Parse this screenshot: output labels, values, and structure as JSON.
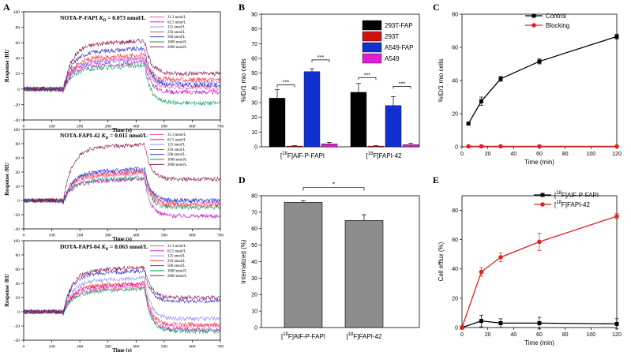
{
  "figure": {
    "panel_letters": [
      "A",
      "B",
      "C",
      "D",
      "E"
    ]
  },
  "chart_data": [
    {
      "id": "A1",
      "type": "line",
      "title_prefix": "NOTA-P-FAPI",
      "kd_symbol": "K",
      "kd_sub": "D",
      "kd_value": " = 0.073 nmol/L",
      "xlabel": "Time (s)",
      "ylabel": "Response /RU",
      "xlim": [
        0,
        700
      ],
      "ylim": [
        -40,
        100
      ],
      "xticks": [
        "0",
        "100",
        "200",
        "300",
        "400",
        "500",
        "600",
        "700"
      ],
      "yticks": [
        "-40",
        "-20",
        "0",
        "20",
        "40",
        "60",
        "80",
        "100"
      ],
      "injection_start_s": 140,
      "injection_end_s": 430,
      "series": [
        {
          "name": "31.3 nmol/L",
          "color": "#ff4fa0",
          "plateau": 38,
          "end": 2
        },
        {
          "name": "62.5 nmol/L",
          "color": "#c000c0",
          "plateau": 32,
          "end": -4
        },
        {
          "name": "125 nmol/L",
          "color": "#8080ff",
          "plateau": 36,
          "end": 8
        },
        {
          "name": "250 nmol/L",
          "color": "#ff2020",
          "plateau": 42,
          "end": 12
        },
        {
          "name": "500 nmol/L",
          "color": "#2020c0",
          "plateau": 50,
          "end": 5
        },
        {
          "name": "1000 nmol/L",
          "color": "#00a050",
          "plateau": 28,
          "end": -18
        },
        {
          "name": "2000 nmol/L",
          "color": "#800040",
          "plateau": 60,
          "end": 20
        }
      ]
    },
    {
      "id": "A2",
      "type": "line",
      "title_prefix": "NOTA-FAPI-42",
      "kd_symbol": "K",
      "kd_sub": "D",
      "kd_value": " = 0.011 nmol/L",
      "xlabel": "Time (s)",
      "ylabel": "Response /RU",
      "xlim": [
        0,
        700
      ],
      "ylim": [
        -40,
        100
      ],
      "xticks": [
        "0",
        "100",
        "200",
        "300",
        "400",
        "500",
        "600",
        "700"
      ],
      "yticks": [
        "-40",
        "-20",
        "0",
        "20",
        "40",
        "60",
        "80",
        "100"
      ],
      "injection_start_s": 140,
      "injection_end_s": 430,
      "series": [
        {
          "name": "31.3 nmol/L",
          "color": "#ff4fa0",
          "plateau": 35,
          "end": -8
        },
        {
          "name": "62.5 nmol/L",
          "color": "#c000c0",
          "plateau": 28,
          "end": -22
        },
        {
          "name": "125 nmol/L",
          "color": "#8080ff",
          "plateau": 40,
          "end": -2
        },
        {
          "name": "250 nmol/L",
          "color": "#ff2020",
          "plateau": 38,
          "end": -5
        },
        {
          "name": "500 nmol/L",
          "color": "#2020c0",
          "plateau": 42,
          "end": 0
        },
        {
          "name": "1000 nmol/L",
          "color": "#00a050",
          "plateau": 30,
          "end": -10
        },
        {
          "name": "2000 nmol/L",
          "color": "#800040",
          "plateau": 76,
          "end": 30
        }
      ]
    },
    {
      "id": "A3",
      "type": "line",
      "title_prefix": "DOTA-FAPI-04",
      "kd_symbol": "K",
      "kd_sub": "D",
      "kd_value": " = 0.063 nmol/L",
      "xlabel": "Time (s)",
      "ylabel": "Response /RU",
      "xlim": [
        0,
        700
      ],
      "ylim": [
        -40,
        100
      ],
      "xticks": [
        "0",
        "100",
        "200",
        "300",
        "400",
        "500",
        "600",
        "700"
      ],
      "yticks": [
        "-40",
        "-20",
        "0",
        "20",
        "40",
        "60",
        "80",
        "100"
      ],
      "injection_start_s": 140,
      "injection_end_s": 430,
      "series": [
        {
          "name": "31.3 nmol/L",
          "color": "#ff4fa0",
          "plateau": 32,
          "end": -20
        },
        {
          "name": "62.5 nmol/L",
          "color": "#c000c0",
          "plateau": 36,
          "end": -25
        },
        {
          "name": "125 nmol/L",
          "color": "#8080ff",
          "plateau": 45,
          "end": -10
        },
        {
          "name": "250 nmol/L",
          "color": "#ff2020",
          "plateau": 38,
          "end": -18
        },
        {
          "name": "500 nmol/L",
          "color": "#2020c0",
          "plateau": 55,
          "end": 15
        },
        {
          "name": "1000 nmol/L",
          "color": "#00a050",
          "plateau": 30,
          "end": -28
        },
        {
          "name": "2000 nmol/L",
          "color": "#800040",
          "plateau": 60,
          "end": 20
        }
      ]
    },
    {
      "id": "B",
      "type": "bar",
      "ylabel": "%ID/1 mio cells",
      "ylim": [
        0,
        90
      ],
      "yticks": [
        "0",
        "10",
        "20",
        "30",
        "40",
        "50",
        "60",
        "70",
        "80",
        "90"
      ],
      "groups": [
        {
          "pre": "[",
          "sup": "18",
          "post": "F]AlF-P-FAPI"
        },
        {
          "pre": "[",
          "sup": "18",
          "post": "F]FAPI-42"
        }
      ],
      "series": [
        {
          "name": "293T-FAP",
          "color": "#000000",
          "values": [
            33,
            37
          ],
          "errors": [
            6,
            6
          ]
        },
        {
          "name": "293T",
          "color": "#d01010",
          "values": [
            0.5,
            0.5
          ],
          "errors": [
            0.3,
            0.3
          ]
        },
        {
          "name": "A549-FAP",
          "color": "#1030d0",
          "values": [
            51,
            28
          ],
          "errors": [
            2,
            6
          ]
        },
        {
          "name": "A549",
          "color": "#e020d0",
          "values": [
            2,
            1.5
          ],
          "errors": [
            1,
            1
          ]
        }
      ],
      "significance": [
        "***",
        "***",
        "***",
        "***"
      ]
    },
    {
      "id": "C",
      "type": "line",
      "xlabel": "Time (min)",
      "ylabel": "%ID/1 mio cells",
      "xlim": [
        0,
        120
      ],
      "ylim": [
        0,
        80
      ],
      "xticks": [
        "0",
        "20",
        "40",
        "60",
        "80",
        "100",
        "120"
      ],
      "yticks": [
        "0",
        "20",
        "40",
        "60",
        "80"
      ],
      "series": [
        {
          "name": "Control",
          "color": "#000000",
          "marker": "square",
          "x": [
            5,
            15,
            30,
            60,
            120
          ],
          "y": [
            14,
            27.5,
            41,
            51.5,
            66.5
          ],
          "err": [
            0.8,
            2.5,
            1.5,
            1.5,
            1.5
          ]
        },
        {
          "name": "Blocking",
          "color": "#e02020",
          "marker": "circle",
          "x": [
            5,
            15,
            30,
            60,
            120
          ],
          "y": [
            0.3,
            0.3,
            0.3,
            0.3,
            0.3
          ],
          "err": [
            0,
            0,
            0,
            0,
            0
          ]
        }
      ]
    },
    {
      "id": "D",
      "type": "bar",
      "ylabel": "Internalized (%)",
      "ylim": [
        0,
        80
      ],
      "yticks": [
        "0",
        "10",
        "20",
        "30",
        "40",
        "50",
        "60",
        "70",
        "80"
      ],
      "categories": [
        {
          "pre": "[",
          "sup": "18",
          "post": "F]AlF-P-FAPI"
        },
        {
          "pre": "[",
          "sup": "18",
          "post": "F]FAPI-42"
        }
      ],
      "values": [
        76,
        65
      ],
      "errors": [
        1,
        3.5
      ],
      "color": "#8c8c8c",
      "significance": "*"
    },
    {
      "id": "E",
      "type": "line",
      "xlabel": "Time (min)",
      "ylabel": "Cell efflux (%)",
      "xlim": [
        0,
        120
      ],
      "ylim": [
        0,
        90
      ],
      "xticks": [
        "0",
        "20",
        "40",
        "60",
        "80",
        "100",
        "120"
      ],
      "yticks": [
        "0",
        "20",
        "40",
        "60",
        "80"
      ],
      "series": [
        {
          "name_pre": "[",
          "name_sup": "18",
          "name_post": "F]AlF-P-FAPI",
          "color": "#000000",
          "marker": "square",
          "x": [
            0,
            15,
            30,
            60,
            120
          ],
          "y": [
            0,
            4.5,
            3,
            3,
            2.5
          ],
          "err": [
            0,
            4,
            3,
            4,
            3.5
          ]
        },
        {
          "name_pre": "[",
          "name_sup": "18",
          "name_post": "F]FAPI-42",
          "color": "#e02020",
          "marker": "circle",
          "x": [
            0,
            15,
            30,
            60,
            120
          ],
          "y": [
            0,
            38,
            48,
            58.5,
            76
          ],
          "err": [
            0,
            3,
            3,
            6,
            2
          ]
        }
      ]
    }
  ]
}
